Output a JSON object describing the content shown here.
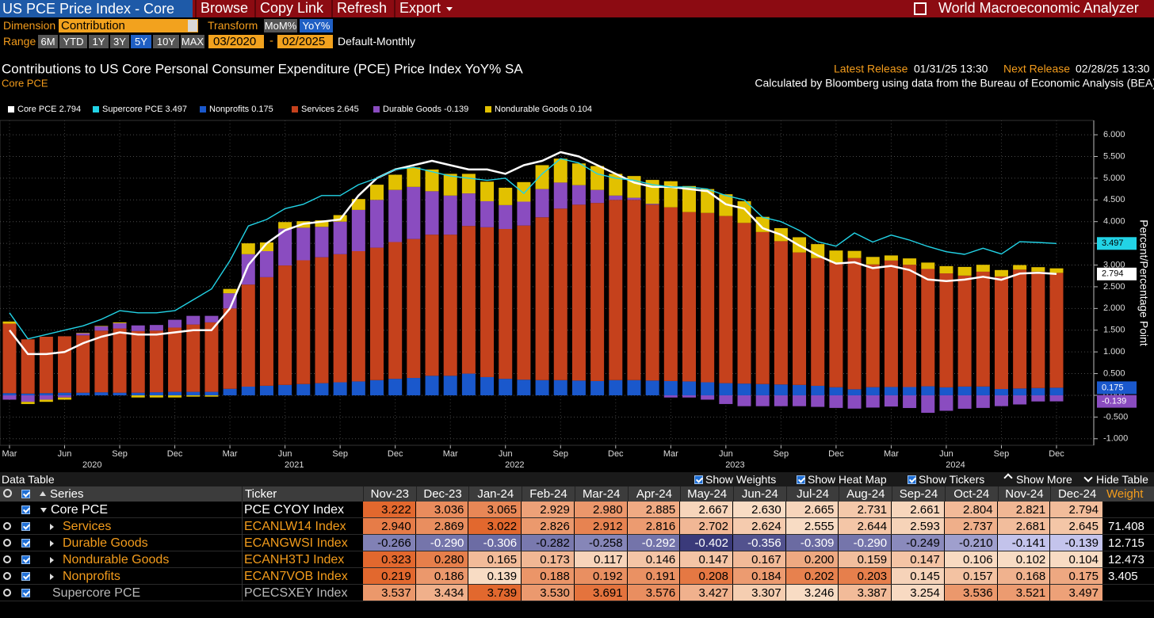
{
  "toolbar": {
    "security": "US PCE Price Index - Core",
    "menu": [
      "Browse",
      "Copy Link",
      "Refresh",
      "Export"
    ],
    "app": "World Macroeconomic Analyzer",
    "dimension_label": "Dimension",
    "dimension": "Contribution",
    "transform_label": "Transform",
    "transforms": [
      "MoM%",
      "YoY%"
    ],
    "active_transform": 1,
    "range_label": "Range",
    "ranges": [
      "6M",
      "YTD",
      "1Y",
      "3Y",
      "5Y",
      "10Y",
      "MAX"
    ],
    "active_range": 4,
    "start": "03/2020",
    "separator": "-",
    "end": "02/2025",
    "frequency": "Default-Monthly"
  },
  "header": {
    "title": "Contributions to US Core Personal Consumer Expenditure (PCE) Price Index YoY% SA",
    "subtitle": "Core PCE",
    "latest_label": "Latest Release",
    "latest": "01/31/25 13:30",
    "next_label": "Next Release",
    "next": "02/28/25 13:30",
    "source": "Calculated by Bloomberg using data from the Bureau of Economic Analysis (BEA)"
  },
  "chart_data": {
    "type": "bar",
    "stacked": true,
    "grid": true,
    "y_axis_label": "Percent/Percentage Point",
    "y_axis_side": "right",
    "categories": [
      "Mar",
      null,
      null,
      "Jun",
      null,
      null,
      "Sep",
      null,
      null,
      "Dec",
      null,
      null,
      "Mar",
      null,
      null,
      "Jun",
      null,
      null,
      "Sep",
      null,
      null,
      "Dec",
      null,
      null,
      "Mar",
      null,
      null,
      "Jun",
      null,
      null,
      "Sep",
      null,
      null,
      "Dec",
      null,
      null,
      "Mar",
      null,
      null,
      "Jun",
      null,
      null,
      "Sep",
      null,
      null,
      "Dec",
      null,
      null,
      "Mar",
      null,
      null,
      "Jun",
      null,
      null,
      "Sep",
      null,
      null,
      "Dec"
    ],
    "years": [
      "2020",
      "2021",
      "2022",
      "2023",
      "2024"
    ],
    "ylim": [
      -1.15,
      6.33
    ],
    "yticks": [
      {
        "value": -1,
        "label": "-1.000"
      },
      {
        "value": -0.5,
        "label": "-0.500"
      },
      {
        "value": 0,
        "label": "0.000"
      },
      {
        "value": 0.5,
        "label": "0.500"
      },
      {
        "value": 1,
        "label": "1.000"
      },
      {
        "value": 1.5,
        "label": "1.500"
      },
      {
        "value": 2,
        "label": "2.000"
      },
      {
        "value": 2.5,
        "label": "2.500"
      },
      {
        "value": 3,
        "label": "3.000"
      },
      {
        "value": 3.5,
        "label": "3.500"
      },
      {
        "value": 4,
        "label": "4.000"
      },
      {
        "value": 4.5,
        "label": "4.500"
      },
      {
        "value": 5,
        "label": "5.000"
      },
      {
        "value": 5.5,
        "label": "5.500"
      },
      {
        "value": 6,
        "label": "6.000"
      }
    ],
    "series": [
      {
        "name": "Core PCE",
        "kind": "line",
        "color": "#ffffff",
        "values": [
          1.5,
          0.95,
          0.95,
          1.0,
          1.2,
          1.35,
          1.45,
          1.4,
          1.4,
          1.45,
          1.5,
          1.5,
          2.0,
          3.0,
          3.5,
          3.8,
          3.95,
          4.0,
          4.05,
          4.6,
          5.0,
          5.2,
          5.3,
          5.4,
          5.3,
          5.2,
          5.2,
          5.1,
          5.3,
          5.4,
          5.6,
          5.5,
          5.3,
          5.1,
          4.9,
          4.8,
          4.8,
          4.75,
          4.7,
          4.4,
          4.3,
          3.85,
          3.7,
          3.45,
          3.222,
          3.036,
          3.065,
          2.929,
          2.98,
          2.885,
          2.667,
          2.63,
          2.665,
          2.731,
          2.661,
          2.804,
          2.821,
          2.794
        ]
      },
      {
        "name": "Supercore PCE",
        "kind": "line",
        "color": "#22d3e6",
        "values": [
          1.9,
          1.3,
          1.4,
          1.5,
          1.6,
          1.75,
          1.95,
          1.9,
          1.9,
          1.95,
          2.2,
          2.45,
          3.1,
          3.9,
          4.05,
          4.3,
          4.4,
          4.6,
          4.6,
          4.85,
          5.0,
          5.2,
          5.25,
          5.15,
          5.05,
          5.0,
          4.95,
          5.0,
          4.65,
          5.1,
          5.45,
          5.35,
          5.1,
          5.0,
          4.95,
          4.85,
          4.8,
          4.8,
          4.75,
          4.6,
          4.5,
          4.1,
          4.0,
          3.8,
          3.537,
          3.434,
          3.739,
          3.53,
          3.691,
          3.576,
          3.427,
          3.307,
          3.246,
          3.387,
          3.254,
          3.536,
          3.521,
          3.497
        ]
      },
      {
        "name": "Nonprofits",
        "kind": "bar",
        "color": "#1a58cc",
        "values": [
          0.05,
          0.04,
          0.05,
          0.06,
          0.06,
          0.07,
          0.06,
          0.06,
          0.07,
          0.08,
          0.08,
          0.08,
          0.15,
          0.2,
          0.22,
          0.24,
          0.26,
          0.28,
          0.3,
          0.32,
          0.35,
          0.38,
          0.4,
          0.45,
          0.45,
          0.5,
          0.42,
          0.38,
          0.36,
          0.35,
          0.35,
          0.34,
          0.33,
          0.35,
          0.35,
          0.34,
          0.33,
          0.32,
          0.3,
          0.28,
          0.27,
          0.26,
          0.25,
          0.24,
          0.219,
          0.186,
          0.139,
          0.188,
          0.192,
          0.191,
          0.208,
          0.184,
          0.202,
          0.203,
          0.145,
          0.157,
          0.168,
          0.175
        ]
      },
      {
        "name": "Services",
        "kind": "bar",
        "color": "#c5411c",
        "values": [
          1.6,
          1.25,
          1.3,
          1.3,
          1.32,
          1.42,
          1.48,
          1.42,
          1.42,
          1.48,
          1.55,
          1.6,
          1.85,
          2.35,
          2.5,
          2.75,
          2.85,
          2.9,
          2.95,
          3.0,
          3.05,
          3.15,
          3.2,
          3.25,
          3.25,
          3.4,
          3.45,
          3.45,
          3.55,
          3.75,
          3.95,
          4.05,
          4.1,
          4.15,
          4.15,
          4.05,
          4.0,
          3.9,
          3.9,
          3.85,
          3.7,
          3.5,
          3.3,
          3.05,
          2.94,
          2.869,
          3.022,
          2.826,
          2.912,
          2.816,
          2.702,
          2.624,
          2.555,
          2.644,
          2.593,
          2.737,
          2.681,
          2.645
        ]
      },
      {
        "name": "Durable Goods",
        "kind": "bar",
        "color": "#8a4cc0",
        "values": [
          -0.1,
          -0.15,
          -0.1,
          -0.05,
          0.05,
          0.1,
          0.12,
          0.13,
          0.13,
          0.18,
          0.2,
          0.15,
          0.35,
          0.7,
          0.6,
          0.85,
          0.75,
          0.7,
          0.75,
          0.95,
          1.1,
          1.2,
          1.2,
          1.0,
          0.9,
          0.75,
          0.6,
          0.55,
          0.55,
          0.65,
          0.6,
          0.45,
          0.3,
          0.1,
          0.05,
          0.02,
          -0.05,
          -0.05,
          -0.1,
          -0.2,
          -0.25,
          -0.25,
          -0.25,
          -0.25,
          -0.266,
          -0.29,
          -0.306,
          -0.282,
          -0.258,
          -0.292,
          -0.402,
          -0.356,
          -0.309,
          -0.29,
          -0.249,
          -0.21,
          -0.141,
          -0.139
        ]
      },
      {
        "name": "Nondurable Goods",
        "kind": "bar",
        "color": "#e2c100",
        "values": [
          0.05,
          -0.05,
          -0.05,
          -0.05,
          0.01,
          0.01,
          0.02,
          -0.05,
          -0.05,
          -0.05,
          -0.03,
          -0.03,
          0.1,
          0.25,
          0.2,
          0.15,
          0.15,
          0.15,
          0.15,
          0.25,
          0.35,
          0.35,
          0.45,
          0.5,
          0.5,
          0.45,
          0.45,
          0.4,
          0.45,
          0.55,
          0.55,
          0.5,
          0.55,
          0.5,
          0.5,
          0.55,
          0.6,
          0.6,
          0.55,
          0.5,
          0.5,
          0.35,
          0.3,
          0.35,
          0.323,
          0.28,
          0.165,
          0.173,
          0.117,
          0.146,
          0.147,
          0.167,
          0.2,
          0.159,
          0.147,
          0.106,
          0.102,
          0.104
        ]
      }
    ]
  },
  "data_table": {
    "title": "Data Table",
    "options": [
      "Show Weights",
      "Show Heat Map",
      "Show Tickers",
      "Show More",
      "Hide Table"
    ],
    "columns": [
      "Series",
      "Ticker",
      "Nov-23",
      "Dec-23",
      "Jan-24",
      "Feb-24",
      "Mar-24",
      "Apr-24",
      "May-24",
      "Jun-24",
      "Jul-24",
      "Aug-24",
      "Sep-24",
      "Oct-24",
      "Nov-24",
      "Dec-24",
      "Weight"
    ],
    "rows": [
      {
        "name": "Core PCE",
        "ticker": "PCE CYOY Index",
        "color": "#ffffff",
        "level": 0,
        "values": [
          "3.222",
          "3.036",
          "3.065",
          "2.929",
          "2.980",
          "2.885",
          "2.667",
          "2.630",
          "2.665",
          "2.731",
          "2.661",
          "2.804",
          "2.821",
          "2.794"
        ]
      },
      {
        "name": "Services",
        "ticker": "ECANLW14 Index",
        "color": "#f39c1c",
        "level": 1,
        "values": [
          "2.940",
          "2.869",
          "3.022",
          "2.826",
          "2.912",
          "2.816",
          "2.702",
          "2.624",
          "2.555",
          "2.644",
          "2.593",
          "2.737",
          "2.681",
          "2.645"
        ],
        "weight": "71.408"
      },
      {
        "name": "Durable Goods",
        "ticker": "ECANGWSI Index",
        "color": "#f39c1c",
        "level": 1,
        "values": [
          "-0.266",
          "-0.290",
          "-0.306",
          "-0.282",
          "-0.258",
          "-0.292",
          "-0.402",
          "-0.356",
          "-0.309",
          "-0.290",
          "-0.249",
          "-0.210",
          "-0.141",
          "-0.139"
        ],
        "weight": "12.715"
      },
      {
        "name": "Nondurable Goods",
        "ticker": "ECANH3TJ Index",
        "color": "#f39c1c",
        "level": 1,
        "values": [
          "0.323",
          "0.280",
          "0.165",
          "0.173",
          "0.117",
          "0.146",
          "0.147",
          "0.167",
          "0.200",
          "0.159",
          "0.147",
          "0.106",
          "0.102",
          "0.104"
        ],
        "weight": "12.473"
      },
      {
        "name": "Nonprofits",
        "ticker": "ECAN7VOB Index",
        "color": "#f39c1c",
        "level": 1,
        "values": [
          "0.219",
          "0.186",
          "0.139",
          "0.188",
          "0.192",
          "0.191",
          "0.208",
          "0.184",
          "0.202",
          "0.203",
          "0.145",
          "0.157",
          "0.168",
          "0.175"
        ],
        "weight": "3.405"
      },
      {
        "name": "Supercore PCE",
        "ticker": "PCECSXEY Index",
        "color": "#b8b8b8",
        "level": 2,
        "values": [
          "3.537",
          "3.434",
          "3.739",
          "3.530",
          "3.691",
          "3.576",
          "3.427",
          "3.307",
          "3.246",
          "3.387",
          "3.254",
          "3.536",
          "3.521",
          "3.497"
        ]
      }
    ]
  }
}
